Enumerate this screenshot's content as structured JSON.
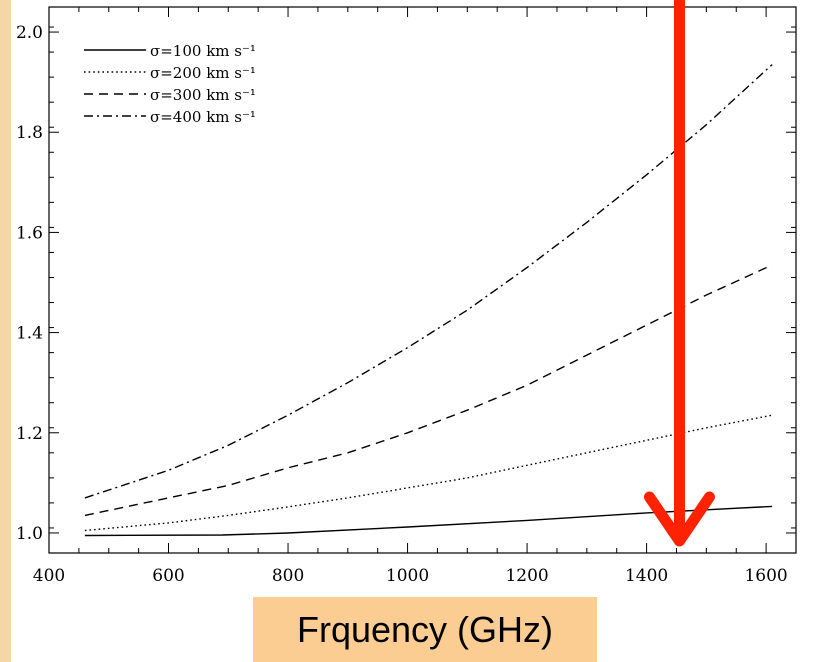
{
  "chart_data": {
    "type": "line",
    "title": "",
    "xlabel": "Frquency (GHz)",
    "ylabel": "",
    "xlim": [
      400,
      1650
    ],
    "ylim": [
      0.96,
      2.05
    ],
    "xticks": [
      400,
      600,
      800,
      1000,
      1200,
      1400,
      1600
    ],
    "yticks": [
      1.0,
      1.2,
      1.4,
      1.6,
      1.8,
      2.0
    ],
    "x_tick_labels": [
      "400",
      "600",
      "800",
      "1000",
      "1200",
      "1400",
      "1600"
    ],
    "y_tick_labels": [
      "1.0",
      "1.2",
      "1.4",
      "1.6",
      "1.8",
      "2.0"
    ],
    "legend_position": "top-left",
    "series": [
      {
        "name": "σ=100 km s⁻¹",
        "dash": "solid",
        "x": [
          460,
          690,
          800,
          1000,
          1200,
          1400,
          1610
        ],
        "y": [
          0.995,
          0.996,
          1.0,
          1.012,
          1.025,
          1.04,
          1.053
        ]
      },
      {
        "name": "σ=200 km s⁻¹",
        "dash": "dotted",
        "x": [
          460,
          600,
          700,
          800,
          900,
          1000,
          1100,
          1200,
          1300,
          1400,
          1500,
          1610
        ],
        "y": [
          1.005,
          1.02,
          1.035,
          1.052,
          1.07,
          1.09,
          1.11,
          1.135,
          1.16,
          1.185,
          1.21,
          1.235
        ]
      },
      {
        "name": "σ=300 km s⁻¹",
        "dash": "dashed",
        "x": [
          460,
          600,
          700,
          800,
          900,
          1000,
          1100,
          1200,
          1300,
          1400,
          1500,
          1610
        ],
        "y": [
          1.035,
          1.07,
          1.095,
          1.13,
          1.16,
          1.2,
          1.245,
          1.295,
          1.355,
          1.415,
          1.475,
          1.535
        ]
      },
      {
        "name": "σ=400 km s⁻¹",
        "dash": "dashdot",
        "x": [
          460,
          600,
          700,
          800,
          900,
          1000,
          1100,
          1200,
          1300,
          1400,
          1500,
          1610
        ],
        "y": [
          1.07,
          1.125,
          1.175,
          1.235,
          1.3,
          1.37,
          1.445,
          1.53,
          1.62,
          1.715,
          1.815,
          1.935
        ]
      }
    ],
    "annotation": {
      "type": "arrow",
      "color": "#ff2200",
      "x": 1455,
      "from_y": 2.05,
      "to_y": 0.96
    }
  },
  "colors": {
    "axis": "#000000",
    "series": "#000000",
    "arrow": "#ff2200",
    "label_box": "#fbcd93",
    "left_strip": "#f6d6a6"
  }
}
